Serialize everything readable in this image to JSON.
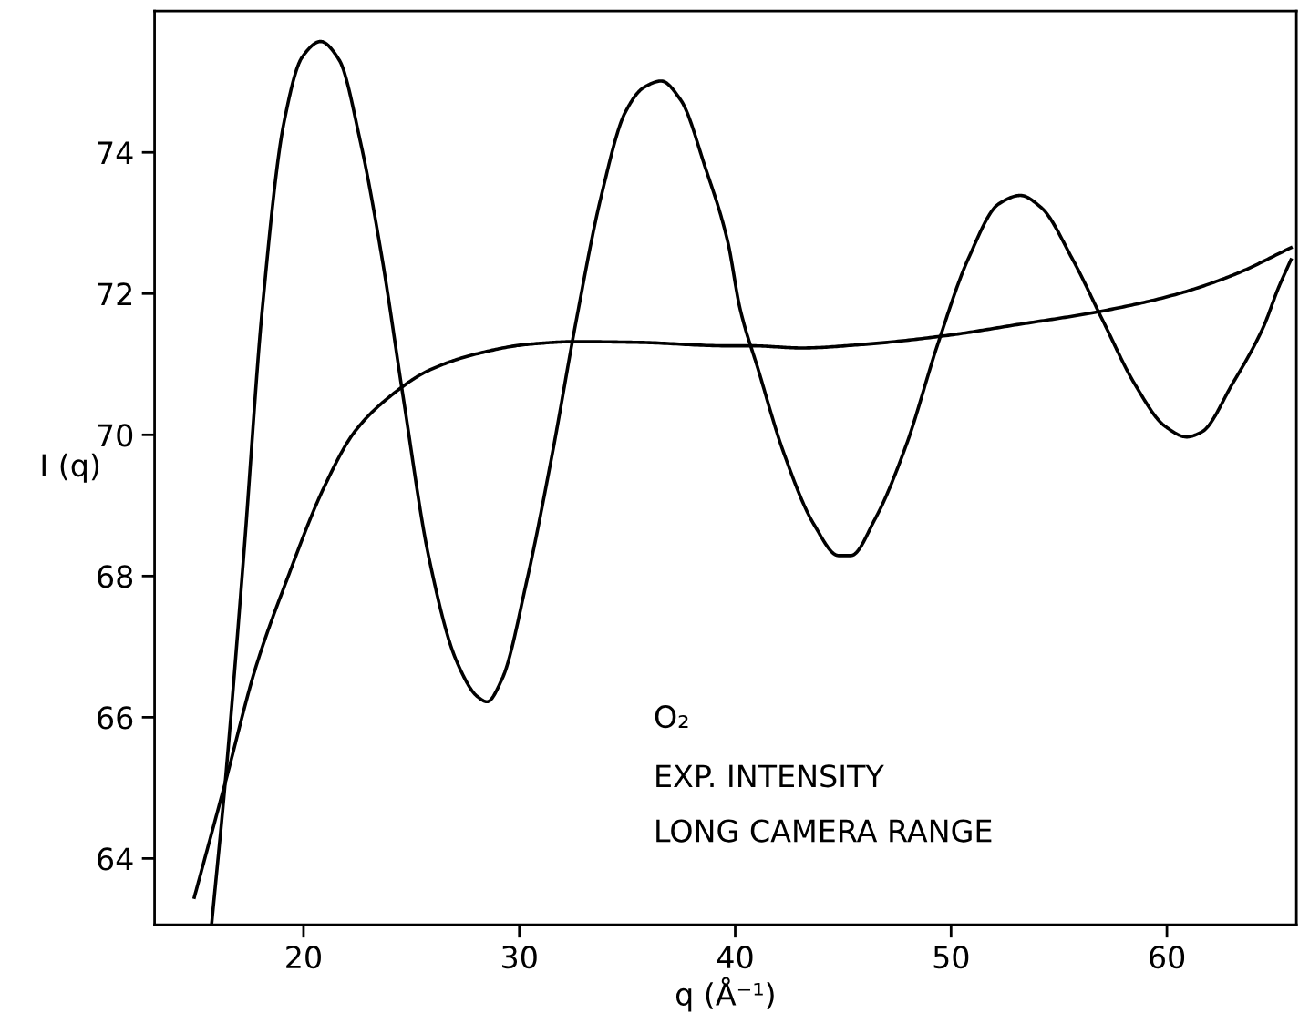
{
  "chart_data": {
    "type": "line",
    "xlabel": "q (Å⁻¹)",
    "ylabel": "I (q)",
    "xlim": [
      13.1,
      66.0
    ],
    "ylim": [
      63.06,
      76.0
    ],
    "xticks": [
      20,
      30,
      40,
      50,
      60
    ],
    "yticks": [
      64,
      66,
      68,
      70,
      72,
      74
    ],
    "grid": false,
    "marker": "none",
    "line_style": "solid",
    "annotations": [
      "O₂",
      "EXP. INTENSITY",
      "LONG CAMERA RANGE"
    ],
    "series": [
      {
        "color": "#000000",
        "x": [
          15.74,
          16.37,
          17.23,
          18.09,
          19.08,
          19.94,
          20.79,
          21.65,
          22.65,
          23.65,
          24.65,
          25.79,
          27.07,
          28.07,
          28.5,
          29.21,
          30.35,
          31.5,
          32.63,
          33.77,
          34.91,
          35.77,
          36.57,
          37.48,
          38.62,
          39.65,
          40.23,
          41.08,
          42.22,
          43.65,
          44.79,
          45.36,
          46.5,
          47.93,
          49.36,
          50.78,
          52.21,
          53.21,
          54.17,
          55.64,
          57.06,
          58.49,
          59.92,
          60.92,
          61.61,
          63.05,
          64.46,
          65.18,
          65.75
        ],
        "values": [
          63.06,
          65.07,
          68.29,
          71.78,
          74.4,
          75.35,
          75.57,
          75.31,
          74.13,
          72.48,
          70.47,
          68.29,
          66.81,
          66.29,
          66.22,
          66.55,
          67.94,
          69.69,
          71.61,
          73.35,
          74.57,
          74.92,
          75.01,
          74.74,
          73.78,
          72.74,
          71.78,
          70.91,
          69.77,
          68.73,
          68.29,
          68.29,
          68.82,
          69.86,
          71.26,
          72.48,
          73.27,
          73.39,
          73.22,
          72.48,
          71.6,
          70.73,
          70.12,
          69.97,
          70.04,
          70.73,
          71.52,
          72.09,
          72.48
        ]
      },
      {
        "color": "#000000",
        "x": [
          14.94,
          16.37,
          17.8,
          19.22,
          20.94,
          22.36,
          24.07,
          25.79,
          28.07,
          30.35,
          32.63,
          35.46,
          39.65,
          40.8,
          43.08,
          45.93,
          49.64,
          53.06,
          56.77,
          60.2,
          63.05,
          65.75
        ],
        "values": [
          63.45,
          65.07,
          66.72,
          67.94,
          69.25,
          70.04,
          70.56,
          70.91,
          71.15,
          71.28,
          71.32,
          71.31,
          71.26,
          71.26,
          71.23,
          71.28,
          71.4,
          71.56,
          71.74,
          71.97,
          72.26,
          72.65
        ]
      }
    ]
  }
}
